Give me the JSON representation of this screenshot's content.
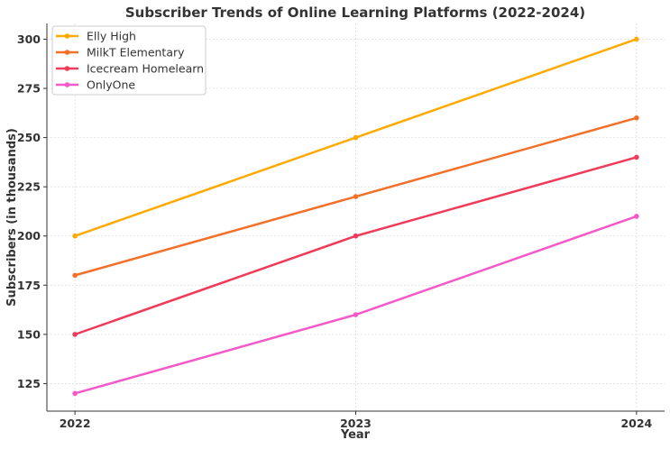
{
  "chart_data": {
    "type": "line",
    "title": "Subscriber Trends of Online Learning Platforms (2022-2024)",
    "xlabel": "Year",
    "ylabel": "Subscribers (in thousands)",
    "x": [
      2022,
      2023,
      2024
    ],
    "x_tick_labels": [
      "2022",
      "2023",
      "2024"
    ],
    "y_ticks": [
      125,
      150,
      175,
      200,
      225,
      250,
      275,
      300
    ],
    "y_tick_labels": [
      "125",
      "150",
      "175",
      "200",
      "225",
      "250",
      "275",
      "300"
    ],
    "xlim": [
      2021.9,
      2024.1
    ],
    "ylim": [
      111,
      308
    ],
    "grid": true,
    "legend_position": "top-left",
    "series": [
      {
        "name": "Elly High",
        "color": "#FFAA00",
        "values": [
          200,
          250,
          300
        ]
      },
      {
        "name": "MilkT Elementary",
        "color": "#F47028",
        "values": [
          180,
          220,
          260
        ]
      },
      {
        "name": "Icecream Homelearn",
        "color": "#F03A5A",
        "values": [
          150,
          200,
          240
        ]
      },
      {
        "name": "OnlyOne",
        "color": "#F558C8",
        "values": [
          120,
          160,
          210
        ]
      }
    ]
  }
}
